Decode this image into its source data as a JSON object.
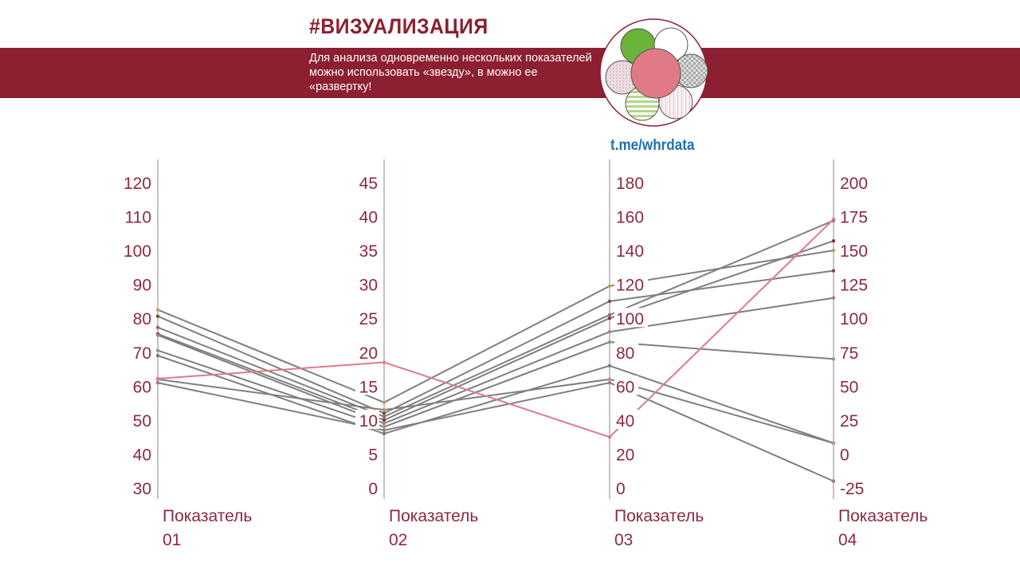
{
  "header": {
    "title": "#ВИЗУАЛИЗАЦИЯ",
    "subtitle": "Для анализа одновременно нескольких показателей можно использовать «звезду», в можно ее «развертку!",
    "link": "t.me/whrdata",
    "colors": {
      "band": "#8c1f30",
      "link": "#1f6fb2"
    }
  },
  "chart_data": {
    "type": "parallel-coordinates",
    "axes": [
      {
        "label_line1": "Показатель",
        "label_line2": "01",
        "range": [
          30,
          120
        ],
        "ticks": [
          "30",
          "40",
          "50",
          "60",
          "70",
          "80",
          "90",
          "100",
          "110",
          "120"
        ]
      },
      {
        "label_line1": "Показатель",
        "label_line2": "02",
        "range": [
          0,
          45
        ],
        "ticks": [
          "0",
          "5",
          "10",
          "15",
          "20",
          "25",
          "30",
          "35",
          "40",
          "45"
        ]
      },
      {
        "label_line1": "Показатель",
        "label_line2": "03",
        "range": [
          0,
          180
        ],
        "ticks": [
          "0",
          "20",
          "40",
          "60",
          "80",
          "100",
          "120",
          "140",
          "160",
          "180"
        ]
      },
      {
        "label_line1": "Показатель",
        "label_line2": "04",
        "range": [
          -25,
          200
        ],
        "ticks": [
          "-25",
          "0",
          "25",
          "50",
          "75",
          "100",
          "125",
          "150",
          "175",
          "200"
        ]
      }
    ],
    "series": [
      {
        "values": [
          82.5,
          12.6,
          119,
          150
        ],
        "color": "#7f7f7f"
      },
      {
        "values": [
          80.6,
          11,
          110,
          135
        ],
        "color": "#7f7f7f"
      },
      {
        "values": [
          77.3,
          10.5,
          102,
          172
        ],
        "color": "#7f7f7f"
      },
      {
        "values": [
          75.4,
          10,
          100,
          157
        ],
        "color": "#7f7f7f"
      },
      {
        "values": [
          75,
          9.5,
          92,
          115
        ],
        "color": "#7f7f7f"
      },
      {
        "values": [
          70.5,
          9,
          86,
          70
        ],
        "color": "#7f7f7f"
      },
      {
        "values": [
          69,
          8,
          72,
          8
        ],
        "color": "#7f7f7f"
      },
      {
        "values": [
          62,
          11.5,
          64,
          8
        ],
        "color": "#7f7f7f"
      },
      {
        "values": [
          61,
          8.5,
          62,
          -20
        ],
        "color": "#7f7f7f"
      },
      {
        "values": [
          62.2,
          18.5,
          30,
          173
        ],
        "color": "#e07a8a"
      }
    ],
    "grid": false
  }
}
